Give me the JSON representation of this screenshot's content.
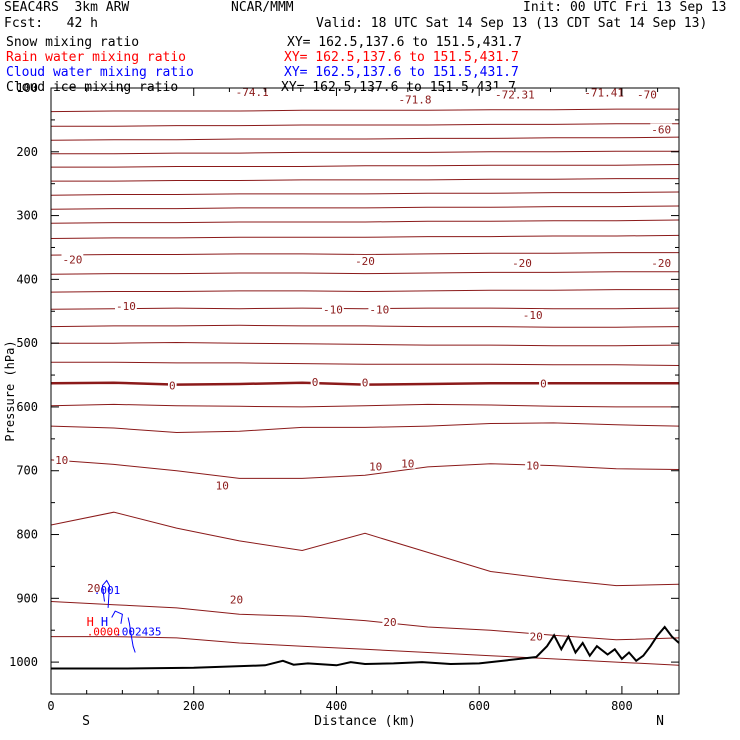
{
  "header": {
    "model": "SEAC4RS  3km ARW",
    "org": "NCAR/MMM",
    "init": "Init: 00 UTC Fri 13 Sep 13",
    "fcst": "Fcst:   42 h",
    "valid": "Valid: 18 UTC Sat 14 Sep 13 (13 CDT Sat 14 Sep 13)"
  },
  "legend": [
    {
      "name": "Snow mixing ratio",
      "xy": "XY= 162.5,137.6 to 151.5,431.7",
      "color": "#000000"
    },
    {
      "name": "Rain water mixing ratio",
      "xy": "XY= 162.5,137.6 to 151.5,431.7",
      "color": "#ff0000"
    },
    {
      "name": "Cloud water mixing ratio",
      "xy": "XY= 162.5,137.6 to 151.5,431.7",
      "color": "#0000ff"
    },
    {
      "name": "Cloud ice mixing ratio",
      "xy": "XY= 162.5,137.6 to 151.5,431.7",
      "color": "#000000"
    }
  ],
  "colors": {
    "isotherm": "#8b1a1a",
    "terrain": "#000000",
    "cloud_water": "#0000ff",
    "rain_water": "#ff0000"
  },
  "chart_data": {
    "type": "line",
    "xlabel": "Distance (km)",
    "ylabel": "Pressure (hPa)",
    "xlim": [
      0,
      880
    ],
    "ylim": [
      1050,
      100
    ],
    "x_ticks": [
      0,
      200,
      400,
      600,
      800
    ],
    "y_ticks": [
      200,
      300,
      400,
      500,
      600,
      700,
      800,
      900,
      1000
    ],
    "y_tick_labels_top": [
      "100"
    ],
    "endpoints": {
      "left": "S",
      "right": "N"
    },
    "isotherm_levels": [
      {
        "p": [
          137,
          136,
          136,
          136,
          135,
          135,
          135,
          134,
          134,
          133,
          133
        ]
      },
      {
        "p": [
          160,
          160,
          159,
          159,
          158,
          158,
          158,
          157,
          157,
          156,
          156
        ]
      },
      {
        "p": [
          182,
          181,
          181,
          180,
          180,
          180,
          179,
          179,
          178,
          178,
          177
        ]
      },
      {
        "p": [
          203,
          203,
          202,
          202,
          201,
          201,
          201,
          200,
          200,
          199,
          199
        ]
      },
      {
        "p": [
          224,
          224,
          223,
          223,
          223,
          222,
          222,
          221,
          221,
          221,
          220
        ]
      },
      {
        "p": [
          246,
          246,
          245,
          245,
          244,
          244,
          244,
          243,
          243,
          242,
          242
        ]
      },
      {
        "p": [
          268,
          267,
          267,
          266,
          266,
          266,
          265,
          265,
          264,
          264,
          263
        ]
      },
      {
        "p": [
          290,
          289,
          289,
          288,
          288,
          288,
          287,
          287,
          286,
          286,
          285
        ]
      },
      {
        "p": [
          312,
          311,
          311,
          310,
          310,
          310,
          309,
          309,
          308,
          308,
          307
        ]
      },
      {
        "p": [
          336,
          335,
          335,
          334,
          334,
          334,
          333,
          333,
          332,
          332,
          331
        ]
      },
      {
        "p": [
          362,
          361,
          361,
          360,
          360,
          361,
          360,
          359,
          359,
          358,
          358
        ]
      },
      {
        "p": [
          392,
          391,
          391,
          390,
          390,
          391,
          390,
          389,
          389,
          388,
          388
        ]
      },
      {
        "p": [
          420,
          419,
          419,
          418,
          418,
          419,
          418,
          417,
          417,
          416,
          416
        ]
      },
      {
        "p": [
          447,
          446,
          445,
          446,
          445,
          446,
          445,
          445,
          446,
          446,
          445
        ]
      },
      {
        "p": [
          474,
          473,
          473,
          472,
          473,
          473,
          474,
          474,
          475,
          475,
          474
        ]
      },
      {
        "p": [
          500,
          500,
          499,
          500,
          501,
          502,
          503,
          503,
          504,
          504,
          503
        ]
      },
      {
        "p": [
          530,
          530,
          531,
          531,
          532,
          533,
          533,
          533,
          534,
          534,
          535
        ]
      },
      {
        "p": [
          563,
          562,
          565,
          564,
          562,
          565,
          564,
          563,
          563,
          563,
          563
        ],
        "bold": true
      },
      {
        "p": [
          598,
          596,
          598,
          599,
          600,
          598,
          596,
          597,
          599,
          600,
          600
        ]
      },
      {
        "p": [
          630,
          633,
          640,
          638,
          632,
          632,
          630,
          626,
          625,
          628,
          630
        ]
      },
      {
        "p": [
          683,
          690,
          700,
          712,
          712,
          707,
          694,
          689,
          692,
          697,
          698
        ]
      },
      {
        "p": [
          785,
          765,
          790,
          810,
          825,
          798,
          828,
          858,
          870,
          880,
          878
        ]
      },
      {
        "p": [
          905,
          910,
          915,
          925,
          928,
          935,
          945,
          950,
          958,
          965,
          962
        ]
      },
      {
        "p": [
          960,
          960,
          962,
          970,
          975,
          980,
          985,
          990,
          995,
          1000,
          1005
        ]
      }
    ],
    "isotherm_x": [
      0,
      88,
      176,
      264,
      352,
      440,
      528,
      616,
      704,
      792,
      880
    ],
    "contour_labels": [
      {
        "text": "-74.1",
        "x": 282,
        "p": 106
      },
      {
        "text": "-71.8",
        "x": 510,
        "p": 118
      },
      {
        "text": "-72.31",
        "x": 650,
        "p": 110
      },
      {
        "text": "-71.41",
        "x": 775,
        "p": 107
      },
      {
        "text": "-70",
        "x": 835,
        "p": 110
      },
      {
        "text": "-60",
        "x": 855,
        "p": 165
      },
      {
        "text": "-20",
        "x": 30,
        "p": 369
      },
      {
        "text": "-20",
        "x": 440,
        "p": 371
      },
      {
        "text": "-20",
        "x": 660,
        "p": 374
      },
      {
        "text": "-20",
        "x": 855,
        "p": 374
      },
      {
        "text": "-10",
        "x": 105,
        "p": 442
      },
      {
        "text": "-10",
        "x": 395,
        "p": 447
      },
      {
        "text": "-10",
        "x": 460,
        "p": 447
      },
      {
        "text": "-10",
        "x": 675,
        "p": 456
      },
      {
        "text": "0",
        "x": 170,
        "p": 566
      },
      {
        "text": "0",
        "x": 370,
        "p": 561
      },
      {
        "text": "0",
        "x": 440,
        "p": 562
      },
      {
        "text": "0",
        "x": 690,
        "p": 563
      },
      {
        "text": "10",
        "x": 15,
        "p": 683
      },
      {
        "text": "10",
        "x": 240,
        "p": 723
      },
      {
        "text": "10",
        "x": 455,
        "p": 693
      },
      {
        "text": "10",
        "x": 500,
        "p": 689
      },
      {
        "text": "10",
        "x": 675,
        "p": 692
      },
      {
        "text": "20",
        "x": 60,
        "p": 884
      },
      {
        "text": "20",
        "x": 260,
        "p": 902
      },
      {
        "text": "20",
        "x": 475,
        "p": 937
      },
      {
        "text": "20",
        "x": 680,
        "p": 960
      }
    ],
    "terrain": {
      "x": [
        0,
        100,
        200,
        300,
        325,
        340,
        360,
        400,
        420,
        440,
        480,
        520,
        560,
        600,
        640,
        680,
        695,
        705,
        715,
        725,
        735,
        745,
        755,
        765,
        780,
        790,
        800,
        810,
        820,
        830,
        840,
        850,
        860,
        870,
        880
      ],
      "p": [
        1010,
        1010,
        1009,
        1005,
        998,
        1004,
        1002,
        1005,
        1000,
        1003,
        1002,
        1000,
        1003,
        1002,
        997,
        992,
        975,
        958,
        980,
        960,
        985,
        970,
        990,
        975,
        988,
        980,
        995,
        985,
        998,
        990,
        975,
        958,
        945,
        960,
        970
      ]
    },
    "cloud_water_labels": [
      {
        "text": ".001",
        "x": 60,
        "p": 887
      },
      {
        "text": ".002435",
        "x": 90,
        "p": 952
      }
    ],
    "rain_water_labels": [
      {
        "text": ".000",
        "x": 50,
        "p": 952
      },
      {
        "text": ".0",
        "x": 78,
        "p": 952
      }
    ],
    "maxima_markers": [
      {
        "text": "H",
        "x": 55,
        "p": 937,
        "color": "#ff0000"
      },
      {
        "text": "H",
        "x": 75,
        "p": 937,
        "color": "#0000ff"
      }
    ]
  }
}
